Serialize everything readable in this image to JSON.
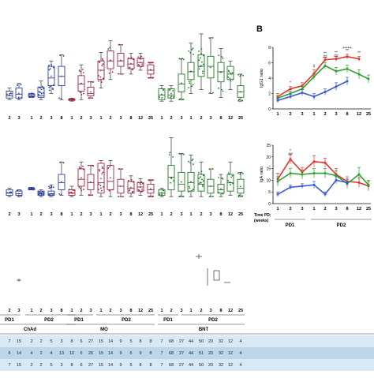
{
  "panel_b_label": "B",
  "colors": {
    "red": "#e8312a",
    "green": "#2ea02e",
    "blue": "#3a5bd9",
    "box_blue": "#2b3f9e",
    "box_red": "#a0253c",
    "box_green": "#207a25",
    "table_bg": "#cfe3f1"
  },
  "chart_data": [
    {
      "type": "line",
      "id": "igg1",
      "ylabel": "IgG1 ratio",
      "ylim": [
        0,
        8
      ],
      "yticks": [
        "0",
        "2",
        "4",
        "6",
        "8"
      ],
      "categories": [
        "1",
        "2",
        "3",
        "1",
        "2",
        "3",
        "8",
        "12",
        "25"
      ],
      "series": [
        {
          "color": "red",
          "values": [
            1.6,
            2.6,
            3.0,
            4.6,
            6.4,
            6.5,
            6.8,
            6.5,
            null
          ],
          "err": [
            0.4,
            0.3,
            0.4,
            0.5,
            0.3,
            0.3,
            0.3,
            0.3,
            null
          ]
        },
        {
          "color": "green",
          "values": [
            1.4,
            2.0,
            2.6,
            4.2,
            5.6,
            4.9,
            5.2,
            4.5,
            3.9
          ],
          "err": [
            0.3,
            0.3,
            0.3,
            0.4,
            0.4,
            0.5,
            0.5,
            0.6,
            0.5
          ]
        },
        {
          "color": "blue",
          "values": [
            1.1,
            1.6,
            2.1,
            1.6,
            2.2,
            2.9,
            3.6,
            null,
            null
          ],
          "err": [
            0.3,
            0.3,
            0.4,
            0.4,
            0.4,
            0.5,
            0.5,
            null,
            null
          ]
        }
      ],
      "annotations": [
        {
          "text": "*",
          "index": 1,
          "row": 0
        },
        {
          "text": "#",
          "index": 3,
          "row": 0
        },
        {
          "text": "**",
          "index": 4,
          "row": 0
        },
        {
          "text": "##",
          "index": 4,
          "row": 1
        },
        {
          "text": "**",
          "index": 5,
          "row": 0
        },
        {
          "text": "##",
          "index": 5,
          "row": 1
        },
        {
          "text": "++++",
          "index": 6,
          "row": -1
        },
        {
          "text": "**",
          "index": 6,
          "row": 0
        },
        {
          "text": "**",
          "index": 7,
          "row": 0
        }
      ]
    },
    {
      "type": "line",
      "id": "iga",
      "ylabel": "IgA ratio",
      "ylim": [
        0,
        25
      ],
      "yticks": [
        "0",
        "5",
        "10",
        "15",
        "20",
        "25"
      ],
      "categories": [
        "1",
        "2",
        "3",
        "1",
        "2",
        "3",
        "8",
        "12",
        "25"
      ],
      "series": [
        {
          "color": "red",
          "values": [
            10.5,
            19.0,
            13.5,
            18.0,
            17.5,
            12.5,
            9.5,
            9.0,
            7.5
          ],
          "err": [
            2.5,
            2.0,
            2.0,
            2.5,
            2.0,
            2.5,
            2.0,
            2.0,
            2.0
          ]
        },
        {
          "color": "green",
          "values": [
            9.5,
            13.0,
            12.5,
            13.0,
            13.0,
            12.0,
            8.5,
            12.5,
            8.0
          ],
          "err": [
            2.0,
            2.0,
            2.0,
            2.0,
            2.0,
            2.0,
            2.0,
            3.0,
            2.0
          ]
        },
        {
          "color": "blue",
          "values": [
            4.0,
            7.0,
            7.5,
            8.0,
            4.0,
            10.0,
            9.0,
            null,
            null
          ],
          "err": [
            1.0,
            1.0,
            1.0,
            1.5,
            1.0,
            1.5,
            1.5,
            null,
            null
          ]
        }
      ],
      "annotations": [
        {
          "text": "*",
          "index": 1,
          "row": 0
        },
        {
          "text": "##",
          "index": 1,
          "row": 1
        }
      ]
    }
  ],
  "panel_b_axis": {
    "time_label": "Time PD:",
    "weeks_label": "(weeks)",
    "groups": [
      {
        "label": "PD1",
        "span": [
          0,
          2
        ]
      },
      {
        "label": "PD2",
        "span": [
          3,
          8
        ]
      }
    ]
  },
  "panel_a": {
    "x_ticks": [
      "2",
      "3",
      "1",
      "2",
      "3",
      "8",
      "1",
      "2",
      "3",
      "1",
      "2",
      "3",
      "8",
      "12",
      "25",
      "1",
      "2",
      "3",
      "1",
      "2",
      "3",
      "8",
      "12",
      "25"
    ],
    "bottom_x_ticks": [
      "2",
      "3",
      "1",
      "2",
      "3",
      "8",
      "1",
      "2",
      "3",
      "1",
      "2",
      "3",
      "8",
      "12",
      "25",
      "1",
      "2",
      "3",
      "1",
      "2",
      "3",
      "8",
      "12",
      "25"
    ],
    "pd_labels": [
      "PD1",
      "PD2",
      "PD1",
      "PD2",
      "PD1",
      "PD2"
    ],
    "vaccine_labels": [
      "ChAd",
      "MO",
      "BNT"
    ],
    "table_rows": [
      [
        "7",
        "15",
        "2",
        "2",
        "5",
        "3",
        "8",
        "6",
        "27",
        "15",
        "14",
        "9",
        "5",
        "8",
        "8",
        "7",
        "68",
        "27",
        "44",
        "50",
        "20",
        "32",
        "12",
        "4"
      ],
      [
        "6",
        "14",
        "4",
        "2",
        "4",
        "13",
        "10",
        "6",
        "26",
        "15",
        "14",
        "9",
        "6",
        "9",
        "8",
        "7",
        "68",
        "27",
        "44",
        "51",
        "20",
        "32",
        "12",
        "4"
      ],
      [
        "7",
        "15",
        "2",
        "2",
        "5",
        "3",
        "8",
        "6",
        "27",
        "15",
        "14",
        "9",
        "5",
        "8",
        "8",
        "7",
        "68",
        "27",
        "44",
        "50",
        "20",
        "32",
        "12",
        "4"
      ]
    ]
  },
  "boxplots_top": [
    {
      "c": "box_blue",
      "q1": 0.14,
      "med": 0.17,
      "q3": 0.23,
      "lo": 0.12,
      "hi": 0.27
    },
    {
      "c": "box_blue",
      "q1": 0.14,
      "med": 0.19,
      "q3": 0.27,
      "lo": 0.12,
      "hi": 0.33
    },
    {
      "c": "box_blue",
      "q1": 0.16,
      "med": 0.17,
      "q3": 0.19,
      "lo": 0.15,
      "hi": 0.2
    },
    {
      "c": "box_blue",
      "q1": 0.15,
      "med": 0.17,
      "q3": 0.28,
      "lo": 0.12,
      "hi": 0.36
    },
    {
      "c": "box_blue",
      "q1": 0.3,
      "med": 0.4,
      "q3": 0.55,
      "lo": 0.2,
      "hi": 0.62
    },
    {
      "c": "box_blue",
      "q1": 0.3,
      "med": 0.42,
      "q3": 0.55,
      "lo": 0.12,
      "hi": 0.7
    },
    {
      "c": "box_red",
      "q1": 0.11,
      "med": 0.12,
      "q3": 0.13,
      "lo": 0.1,
      "hi": 0.14
    },
    {
      "c": "box_red",
      "q1": 0.23,
      "med": 0.32,
      "q3": 0.43,
      "lo": 0.12,
      "hi": 0.57
    },
    {
      "c": "box_red",
      "q1": 0.17,
      "med": 0.2,
      "q3": 0.28,
      "lo": 0.14,
      "hi": 0.35
    },
    {
      "c": "box_red",
      "q1": 0.38,
      "med": 0.5,
      "q3": 0.62,
      "lo": 0.27,
      "hi": 0.73
    },
    {
      "c": "box_red",
      "q1": 0.52,
      "med": 0.62,
      "q3": 0.75,
      "lo": 0.38,
      "hi": 0.88
    },
    {
      "c": "box_red",
      "q1": 0.55,
      "med": 0.62,
      "q3": 0.72,
      "lo": 0.45,
      "hi": 0.83
    },
    {
      "c": "box_red",
      "q1": 0.52,
      "med": 0.58,
      "q3": 0.65,
      "lo": 0.45,
      "hi": 0.72
    },
    {
      "c": "box_red",
      "q1": 0.55,
      "med": 0.6,
      "q3": 0.65,
      "lo": 0.5,
      "hi": 0.72
    },
    {
      "c": "box_red",
      "q1": 0.45,
      "med": 0.5,
      "q3": 0.57,
      "lo": 0.4,
      "hi": 0.6
    },
    {
      "c": "box_green",
      "q1": 0.12,
      "med": 0.18,
      "q3": 0.26,
      "lo": 0.1,
      "hi": 0.3
    },
    {
      "c": "box_green",
      "q1": 0.14,
      "med": 0.18,
      "q3": 0.26,
      "lo": 0.1,
      "hi": 0.3
    },
    {
      "c": "box_green",
      "q1": 0.22,
      "med": 0.32,
      "q3": 0.45,
      "lo": 0.12,
      "hi": 0.65
    },
    {
      "c": "box_green",
      "q1": 0.38,
      "med": 0.48,
      "q3": 0.6,
      "lo": 0.2,
      "hi": 0.85
    },
    {
      "c": "box_green",
      "q1": 0.42,
      "med": 0.55,
      "q3": 0.7,
      "lo": 0.25,
      "hi": 0.97
    },
    {
      "c": "box_green",
      "q1": 0.4,
      "med": 0.55,
      "q3": 0.68,
      "lo": 0.2,
      "hi": 0.92
    },
    {
      "c": "box_green",
      "q1": 0.35,
      "med": 0.48,
      "q3": 0.6,
      "lo": 0.15,
      "hi": 0.78
    },
    {
      "c": "box_green",
      "q1": 0.38,
      "med": 0.45,
      "q3": 0.55,
      "lo": 0.25,
      "hi": 0.62
    },
    {
      "c": "box_green",
      "q1": 0.15,
      "med": 0.22,
      "q3": 0.3,
      "lo": 0.1,
      "hi": 0.45
    }
  ],
  "boxplots_mid": [
    {
      "c": "box_blue",
      "q1": 0.12,
      "med": 0.15,
      "q3": 0.2,
      "lo": 0.1,
      "hi": 0.22
    },
    {
      "c": "box_blue",
      "q1": 0.12,
      "med": 0.14,
      "q3": 0.18,
      "lo": 0.1,
      "hi": 0.2
    },
    {
      "c": "box_blue",
      "q1": 0.2,
      "med": 0.21,
      "q3": 0.22,
      "lo": 0.2,
      "hi": 0.23
    },
    {
      "c": "box_blue",
      "q1": 0.12,
      "med": 0.14,
      "q3": 0.18,
      "lo": 0.1,
      "hi": 0.2
    },
    {
      "c": "box_blue",
      "q1": 0.12,
      "med": 0.14,
      "q3": 0.18,
      "lo": 0.1,
      "hi": 0.27
    },
    {
      "c": "box_blue",
      "q1": 0.2,
      "med": 0.3,
      "q3": 0.42,
      "lo": 0.12,
      "hi": 0.6
    },
    {
      "c": "box_red",
      "q1": 0.12,
      "med": 0.15,
      "q3": 0.2,
      "lo": 0.1,
      "hi": 0.25
    },
    {
      "c": "box_red",
      "q1": 0.25,
      "med": 0.35,
      "q3": 0.5,
      "lo": 0.12,
      "hi": 0.6
    },
    {
      "c": "box_red",
      "q1": 0.2,
      "med": 0.3,
      "q3": 0.42,
      "lo": 0.12,
      "hi": 0.55
    },
    {
      "c": "box_red",
      "q1": 0.15,
      "med": 0.3,
      "q3": 0.58,
      "lo": 0.1,
      "hi": 0.62
    },
    {
      "c": "box_red",
      "q1": 0.2,
      "med": 0.32,
      "q3": 0.55,
      "lo": 0.1,
      "hi": 0.62
    },
    {
      "c": "box_red",
      "q1": 0.15,
      "med": 0.25,
      "q3": 0.35,
      "lo": 0.1,
      "hi": 0.5
    },
    {
      "c": "box_red",
      "q1": 0.15,
      "med": 0.22,
      "q3": 0.32,
      "lo": 0.1,
      "hi": 0.4
    },
    {
      "c": "box_red",
      "q1": 0.18,
      "med": 0.24,
      "q3": 0.3,
      "lo": 0.12,
      "hi": 0.36
    },
    {
      "c": "box_red",
      "q1": 0.15,
      "med": 0.2,
      "q3": 0.28,
      "lo": 0.1,
      "hi": 0.34
    },
    {
      "c": "box_green",
      "q1": 0.12,
      "med": 0.15,
      "q3": 0.2,
      "lo": 0.1,
      "hi": 0.22
    },
    {
      "c": "box_green",
      "q1": 0.2,
      "med": 0.38,
      "q3": 0.55,
      "lo": 0.1,
      "hi": 0.95
    },
    {
      "c": "box_green",
      "q1": 0.18,
      "med": 0.28,
      "q3": 0.45,
      "lo": 0.1,
      "hi": 0.72
    },
    {
      "c": "box_green",
      "q1": 0.18,
      "med": 0.3,
      "q3": 0.45,
      "lo": 0.1,
      "hi": 0.7
    },
    {
      "c": "box_green",
      "q1": 0.18,
      "med": 0.28,
      "q3": 0.42,
      "lo": 0.1,
      "hi": 0.6
    },
    {
      "c": "box_green",
      "q1": 0.15,
      "med": 0.25,
      "q3": 0.35,
      "lo": 0.1,
      "hi": 0.5
    },
    {
      "c": "box_green",
      "q1": 0.15,
      "med": 0.2,
      "q3": 0.28,
      "lo": 0.1,
      "hi": 0.42
    },
    {
      "c": "box_green",
      "q1": 0.18,
      "med": 0.3,
      "q3": 0.42,
      "lo": 0.12,
      "hi": 0.6
    },
    {
      "c": "box_green",
      "q1": 0.15,
      "med": 0.22,
      "q3": 0.35,
      "lo": 0.1,
      "hi": 0.45
    }
  ]
}
